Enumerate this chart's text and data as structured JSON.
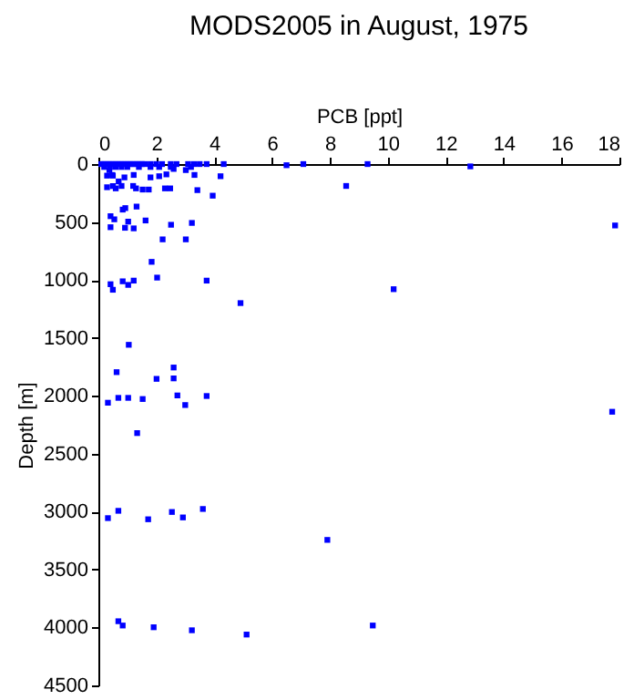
{
  "chart_data": {
    "type": "scatter",
    "title": "MODS2005 in August, 1975",
    "xlabel": "PCB [ppt]",
    "ylabel": "Depth [m]",
    "x": [
      0.1,
      0.2,
      0.3,
      0.4,
      0.5,
      0.6,
      0.7,
      0.8,
      0.9,
      1.0,
      1.1,
      1.2,
      1.3,
      1.4,
      1.5,
      1.6,
      1.8,
      2.0,
      2.2,
      2.5,
      2.7,
      3.1,
      3.3,
      3.5,
      3.74,
      4.33,
      6.5,
      7.08,
      9.3,
      12.85,
      0.2,
      0.4,
      0.6,
      0.8,
      1.0,
      1.4,
      1.8,
      2.1,
      2.5,
      3.2,
      0.3,
      0.5,
      0.7,
      0.38,
      0.48,
      0.9,
      1.22,
      1.8,
      2.1,
      2.35,
      2.6,
      3.02,
      3.32,
      4.22,
      0.3,
      0.5,
      0.6,
      0.8,
      1.2,
      1.3,
      1.53,
      1.74,
      2.3,
      2.48,
      3.42,
      3.95,
      8.56,
      0.42,
      0.55,
      0.42,
      0.84,
      0.92,
      1.03,
      1.22,
      1.32,
      1.63,
      2.51,
      3.23,
      2.22,
      3.02,
      17.85,
      0.93,
      1.84,
      2.03,
      0.42,
      0.5,
      0.84,
      1.03,
      1.22,
      3.74,
      4.91,
      10.2,
      1.05,
      0.63,
      2.6,
      2.01,
      2.6,
      0.33,
      0.69,
      1.03,
      1.53,
      1.34,
      2.73,
      3.0,
      3.74,
      17.75,
      0.33,
      0.69,
      1.72,
      2.54,
      2.92,
      3.61,
      7.91,
      0.69,
      0.84,
      1.91,
      3.23,
      5.12,
      9.48
    ],
    "values": [
      0,
      0,
      0,
      0,
      0,
      0,
      0,
      0,
      0,
      0,
      0,
      0,
      0,
      0,
      0,
      0,
      0,
      0,
      0,
      0,
      0,
      0,
      0,
      0,
      0,
      0,
      10,
      0,
      0,
      20,
      25,
      25,
      25,
      25,
      25,
      25,
      25,
      25,
      25,
      25,
      100,
      100,
      150,
      52,
      94,
      115,
      94,
      115,
      105,
      89,
      42,
      52,
      94,
      105,
      200,
      190,
      210,
      189,
      189,
      210,
      220,
      220,
      210,
      210,
      225,
      273,
      189,
      450,
      477,
      545,
      393,
      550,
      497,
      555,
      367,
      487,
      524,
      508,
      650,
      650,
      530,
      380,
      844,
      980,
      1037,
      1085,
      1012,
      1043,
      1006,
      1006,
      1200,
      1080,
      1560,
      1796,
      1756,
      1854,
      1850,
      2060,
      2018,
      2018,
      2028,
      2322,
      1997,
      2080,
      2002,
      2138,
      3056,
      2993,
      3066,
      3003,
      3050,
      2977,
      3244,
      3946,
      3983,
      3998,
      4024,
      4061,
      3983
    ],
    "color": "#0000ff",
    "marker": "square",
    "xlim": [
      0,
      18
    ],
    "xticks": [
      0,
      2,
      4,
      6,
      8,
      10,
      12,
      14,
      16,
      18
    ],
    "ylim": [
      4500,
      0
    ],
    "yticks": [
      0,
      500,
      1000,
      1500,
      2000,
      2500,
      3000,
      3500,
      4000,
      4500
    ]
  }
}
